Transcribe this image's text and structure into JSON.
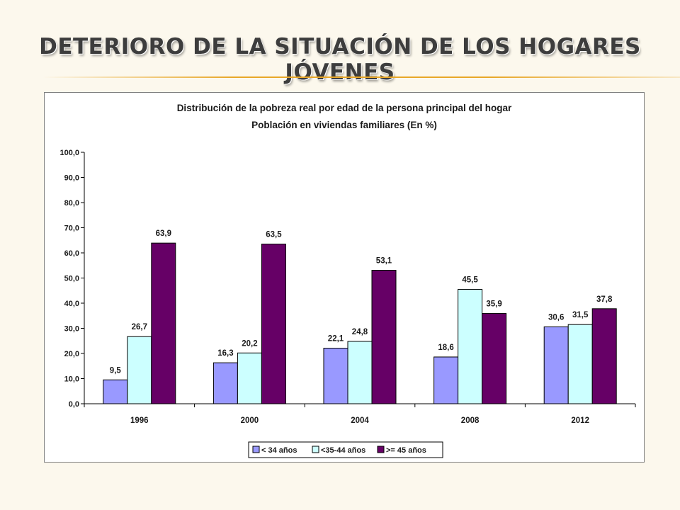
{
  "slide": {
    "title": "DETERIORO DE LA SITUACIÓN DE LOS HOGARES JÓVENES"
  },
  "chart_data": {
    "type": "bar",
    "title": "Distribución de la pobreza real por edad de la persona principal del hogar",
    "subtitle": "Población en viviendas familiares (En %)",
    "categories": [
      "1996",
      "2000",
      "2004",
      "2008",
      "2012"
    ],
    "series": [
      {
        "name": "< 34 años",
        "color": "#9999ff",
        "values": [
          9.5,
          16.3,
          22.1,
          18.6,
          30.6
        ],
        "labels": [
          "9,5",
          "16,3",
          "22,1",
          "18,6",
          "30,6"
        ]
      },
      {
        "name": "<35-44 años",
        "color": "#ccffff",
        "values": [
          26.7,
          20.2,
          24.8,
          45.5,
          31.5
        ],
        "labels": [
          "26,7",
          "20,2",
          "24,8",
          "45,5",
          "31,5"
        ]
      },
      {
        "name": ">= 45 años",
        "color": "#660066",
        "values": [
          63.9,
          63.5,
          53.1,
          35.9,
          37.8
        ],
        "labels": [
          "63,9",
          "63,5",
          "53,1",
          "35,9",
          "37,8"
        ]
      }
    ],
    "ylim": [
      0,
      100
    ],
    "yticks": [
      "0,0",
      "10,0",
      "20,0",
      "30,0",
      "40,0",
      "50,0",
      "60,0",
      "70,0",
      "80,0",
      "90,0",
      "100,0"
    ],
    "grid": false,
    "legend_position": "bottom"
  }
}
